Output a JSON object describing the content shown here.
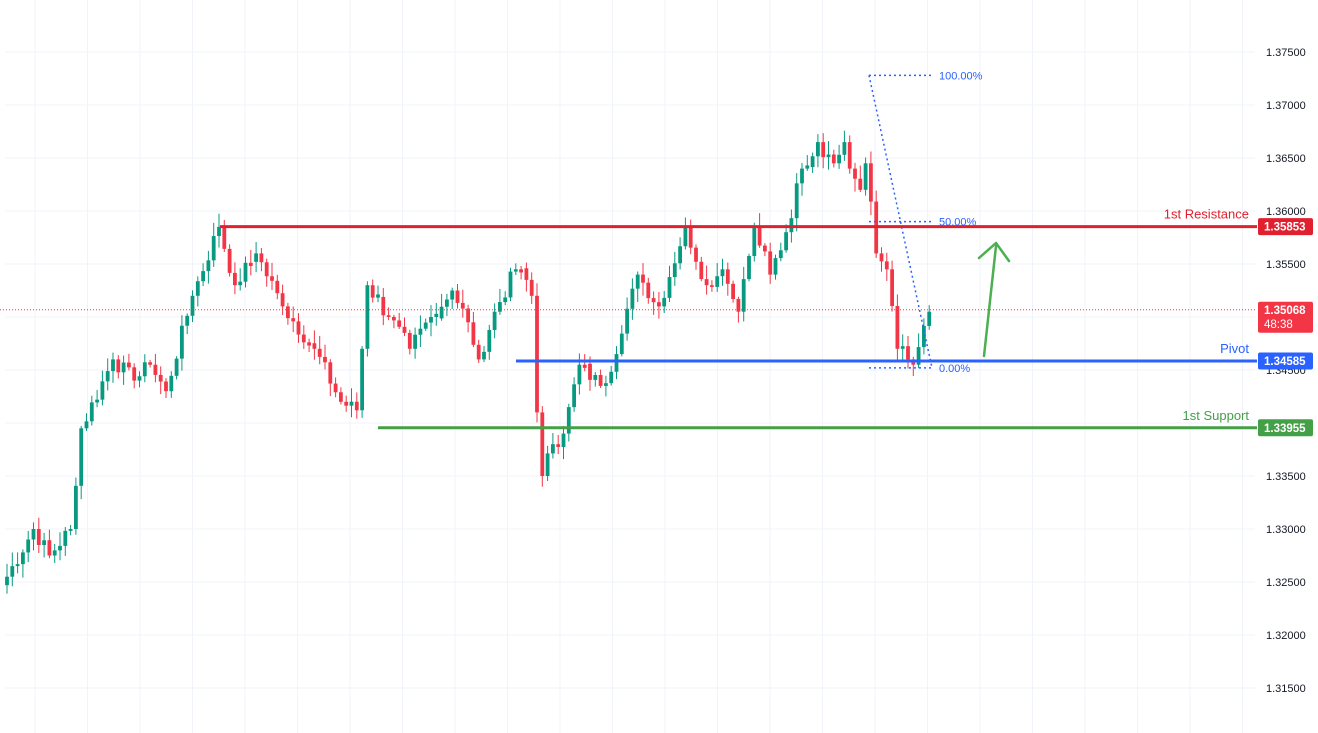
{
  "chart_data": {
    "type": "candlestick",
    "instrument_note": "",
    "y_axis": {
      "ylim": [
        1.3125,
        1.38
      ],
      "ticks": [
        "1.37500",
        "1.37000",
        "1.36500",
        "1.36000",
        "1.35500",
        "1.35000",
        "1.34500",
        "1.34000",
        "1.33500",
        "1.33000",
        "1.32500",
        "1.32000",
        "1.31500"
      ],
      "tick_values": [
        1.375,
        1.37,
        1.365,
        1.36,
        1.355,
        1.35,
        1.345,
        1.34,
        1.335,
        1.33,
        1.325,
        1.32,
        1.315
      ],
      "position": "right",
      "grid": true
    },
    "colors": {
      "up": "#089981",
      "down": "#f23645",
      "resistance": "#e0202e",
      "pivot": "#2962ff",
      "support": "#43a047",
      "fib": "#2962ff",
      "arrow": "#4caf50"
    },
    "levels": [
      {
        "name": "1st Resistance",
        "value": 1.35853,
        "value_label": "1.35853",
        "color": "#e0202e"
      },
      {
        "name": "Pivot",
        "value": 1.34585,
        "value_label": "1.34585",
        "color": "#2962ff"
      },
      {
        "name": "1st Support",
        "value": 1.33955,
        "value_label": "1.33955",
        "color": "#43a047"
      }
    ],
    "current_price": {
      "value": 1.35068,
      "value_label": "1.35068",
      "countdown": "48:38"
    },
    "fibonacci": {
      "high": 1.3728,
      "low": 1.3452,
      "levels": [
        {
          "label": "100.00%",
          "value": 1.3728
        },
        {
          "label": "50.00%",
          "value": 1.359
        },
        {
          "label": "0.00%",
          "value": 1.3452
        }
      ]
    },
    "anchors": [
      {
        "i": 0,
        "p": 1.3255
      },
      {
        "i": 5,
        "p": 1.33
      },
      {
        "i": 8,
        "p": 1.3275
      },
      {
        "i": 12,
        "p": 1.33
      },
      {
        "i": 14,
        "p": 1.3395
      },
      {
        "i": 20,
        "p": 1.346
      },
      {
        "i": 24,
        "p": 1.344
      },
      {
        "i": 27,
        "p": 1.3455
      },
      {
        "i": 30,
        "p": 1.343
      },
      {
        "i": 35,
        "p": 1.352
      },
      {
        "i": 40,
        "p": 1.3585
      },
      {
        "i": 43,
        "p": 1.353
      },
      {
        "i": 47,
        "p": 1.356
      },
      {
        "i": 52,
        "p": 1.351
      },
      {
        "i": 58,
        "p": 1.347
      },
      {
        "i": 63,
        "p": 1.342
      },
      {
        "i": 66,
        "p": 1.3412
      },
      {
        "i": 68,
        "p": 1.353
      },
      {
        "i": 72,
        "p": 1.35
      },
      {
        "i": 76,
        "p": 1.347
      },
      {
        "i": 80,
        "p": 1.35
      },
      {
        "i": 84,
        "p": 1.3525
      },
      {
        "i": 87,
        "p": 1.3495
      },
      {
        "i": 89,
        "p": 1.346
      },
      {
        "i": 92,
        "p": 1.3505
      },
      {
        "i": 96,
        "p": 1.3545
      },
      {
        "i": 98,
        "p": 1.3535
      },
      {
        "i": 99,
        "p": 1.352
      },
      {
        "i": 100,
        "p": 1.341
      },
      {
        "i": 101,
        "p": 1.335
      },
      {
        "i": 103,
        "p": 1.338
      },
      {
        "i": 105,
        "p": 1.339
      },
      {
        "i": 108,
        "p": 1.3455
      },
      {
        "i": 112,
        "p": 1.3435
      },
      {
        "i": 115,
        "p": 1.3465
      },
      {
        "i": 119,
        "p": 1.354
      },
      {
        "i": 123,
        "p": 1.351
      },
      {
        "i": 128,
        "p": 1.3585
      },
      {
        "i": 132,
        "p": 1.353
      },
      {
        "i": 135,
        "p": 1.3545
      },
      {
        "i": 138,
        "p": 1.3505
      },
      {
        "i": 141,
        "p": 1.3585
      },
      {
        "i": 144,
        "p": 1.354
      },
      {
        "i": 147,
        "p": 1.358
      },
      {
        "i": 150,
        "p": 1.364
      },
      {
        "i": 153,
        "p": 1.3665
      },
      {
        "i": 156,
        "p": 1.3645
      },
      {
        "i": 158,
        "p": 1.3665
      },
      {
        "i": 159,
        "p": 1.364
      },
      {
        "i": 161,
        "p": 1.362
      },
      {
        "i": 162,
        "p": 1.3645
      },
      {
        "i": 164,
        "p": 1.356
      },
      {
        "i": 166,
        "p": 1.3545
      },
      {
        "i": 168,
        "p": 1.347
      },
      {
        "i": 170,
        "p": 1.346
      },
      {
        "i": 171,
        "p": 1.3455
      },
      {
        "i": 174,
        "p": 1.3505
      }
    ]
  }
}
